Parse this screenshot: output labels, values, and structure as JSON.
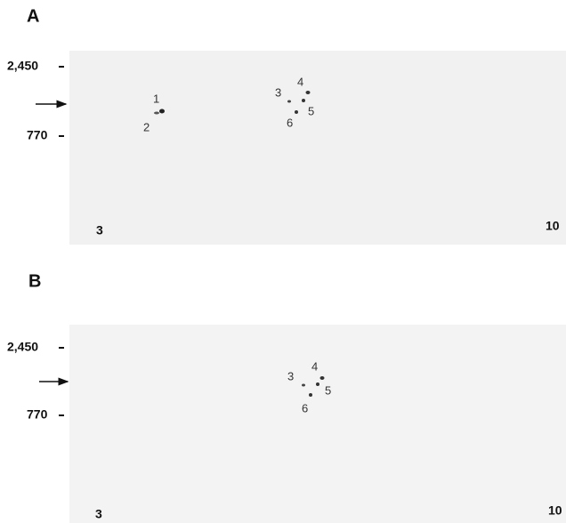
{
  "panels": [
    {
      "label": "A",
      "markers": [
        "2,450",
        "770"
      ],
      "spots": [
        "1",
        "2",
        "3",
        "4",
        "5",
        "6"
      ],
      "ph_range": [
        "3",
        "10"
      ]
    },
    {
      "label": "B",
      "markers": [
        "2,450",
        "770"
      ],
      "spots": [
        "3",
        "4",
        "5",
        "6"
      ],
      "ph_range": [
        "3",
        "10"
      ]
    }
  ]
}
